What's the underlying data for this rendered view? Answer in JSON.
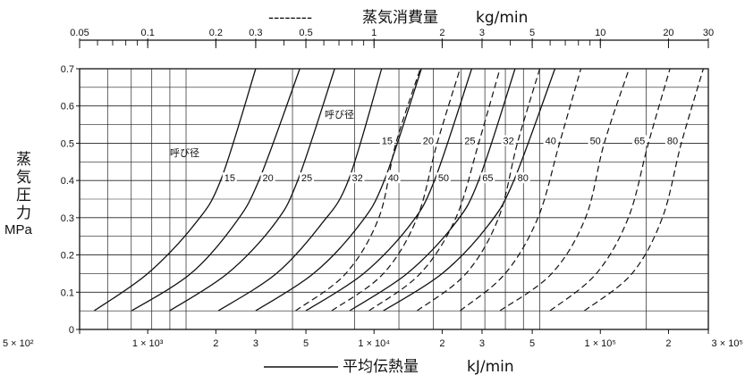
{
  "chart_data": {
    "type": "line",
    "title_top": "蒸気消費量",
    "title_top_unit": "kg/min",
    "title_top_legend": "--------",
    "title_bottom": "平均伝熱量",
    "title_bottom_unit": "kJ/min",
    "title_bottom_legend": "————",
    "ylabel_lines": [
      "蒸",
      "気",
      "圧",
      "力"
    ],
    "ylabel_unit": "MPa",
    "y_range": [
      0,
      0.7
    ],
    "y_ticks": [
      "0",
      "0.1",
      "0.2",
      "0.3",
      "0.4",
      "0.5",
      "0.6",
      "0.7"
    ],
    "x_bottom_range": [
      500,
      30000
    ],
    "x_bottom_scale": "log",
    "x_bottom_tick_labels": [
      "5 × 10²",
      "1 × 10³",
      "2",
      "3",
      "5",
      "1 × 10⁴",
      "2",
      "3",
      "5",
      "1 × 10⁵",
      "2",
      "3 × 10⁵"
    ],
    "x_top_range": [
      0.05,
      30
    ],
    "x_top_scale": "log",
    "x_top_tick_labels": [
      "0.05",
      "0.1",
      "0.2",
      "0.3",
      "0.5",
      "1",
      "2",
      "3",
      "5",
      "10",
      "20",
      "30"
    ],
    "nominal_size_label": "呼び径",
    "solid_series": [
      {
        "name": "15",
        "points": [
          [
            580,
            0.05
          ],
          [
            1000,
            0.15
          ],
          [
            1600,
            0.28
          ],
          [
            2100,
            0.4
          ],
          [
            3000,
            0.7
          ]
        ]
      },
      {
        "name": "20",
        "points": [
          [
            850,
            0.05
          ],
          [
            1550,
            0.15
          ],
          [
            2400,
            0.28
          ],
          [
            3100,
            0.4
          ],
          [
            4700,
            0.7
          ]
        ]
      },
      {
        "name": "25",
        "points": [
          [
            1250,
            0.05
          ],
          [
            2250,
            0.15
          ],
          [
            3600,
            0.28
          ],
          [
            4600,
            0.4
          ],
          [
            6700,
            0.7
          ]
        ]
      },
      {
        "name": "32",
        "points": [
          [
            2050,
            0.05
          ],
          [
            3700,
            0.15
          ],
          [
            5800,
            0.28
          ],
          [
            7700,
            0.4
          ],
          [
            10800,
            0.7
          ]
        ]
      },
      {
        "name": "40",
        "points": [
          [
            3000,
            0.05
          ],
          [
            5400,
            0.15
          ],
          [
            8600,
            0.28
          ],
          [
            11100,
            0.4
          ],
          [
            16200,
            0.7
          ]
        ]
      },
      {
        "name": "50",
        "points": [
          [
            5000,
            0.05
          ],
          [
            9000,
            0.15
          ],
          [
            14400,
            0.28
          ],
          [
            18500,
            0.4
          ],
          [
            27000,
            0.7
          ]
        ]
      },
      {
        "name": "65",
        "points": [
          [
            7800,
            0.05
          ],
          [
            14000,
            0.15
          ],
          [
            22500,
            0.28
          ],
          [
            29000,
            0.4
          ],
          [
            42000,
            0.7
          ]
        ]
      },
      {
        "name": "80",
        "points": [
          [
            11000,
            0.05
          ],
          [
            20000,
            0.15
          ],
          [
            32000,
            0.28
          ],
          [
            41500,
            0.4
          ],
          [
            63000,
            0.7
          ]
        ]
      }
    ],
    "dashed_series": [
      {
        "name": "15",
        "points": [
          [
            0.45,
            0.05
          ],
          [
            0.75,
            0.15
          ],
          [
            1.05,
            0.3
          ],
          [
            1.25,
            0.5
          ],
          [
            1.6,
            0.7
          ]
        ]
      },
      {
        "name": "20",
        "points": [
          [
            0.65,
            0.05
          ],
          [
            1.1,
            0.15
          ],
          [
            1.55,
            0.3
          ],
          [
            1.9,
            0.5
          ],
          [
            2.4,
            0.7
          ]
        ]
      },
      {
        "name": "25",
        "points": [
          [
            0.95,
            0.05
          ],
          [
            1.6,
            0.15
          ],
          [
            2.3,
            0.3
          ],
          [
            2.9,
            0.5
          ],
          [
            3.6,
            0.7
          ]
        ]
      },
      {
        "name": "32",
        "points": [
          [
            1.55,
            0.05
          ],
          [
            2.55,
            0.15
          ],
          [
            3.55,
            0.3
          ],
          [
            4.3,
            0.5
          ],
          [
            5.4,
            0.7
          ]
        ]
      },
      {
        "name": "40",
        "points": [
          [
            2.4,
            0.05
          ],
          [
            3.8,
            0.15
          ],
          [
            5.3,
            0.3
          ],
          [
            6.6,
            0.5
          ],
          [
            8.2,
            0.7
          ]
        ]
      },
      {
        "name": "50",
        "points": [
          [
            3.6,
            0.05
          ],
          [
            6.1,
            0.15
          ],
          [
            8.6,
            0.3
          ],
          [
            10.4,
            0.5
          ],
          [
            13.4,
            0.7
          ]
        ]
      },
      {
        "name": "65",
        "points": [
          [
            6.0,
            0.05
          ],
          [
            9.6,
            0.15
          ],
          [
            13.3,
            0.3
          ],
          [
            16.3,
            0.5
          ],
          [
            20.3,
            0.7
          ]
        ]
      },
      {
        "name": "80",
        "points": [
          [
            8.5,
            0.05
          ],
          [
            13.8,
            0.15
          ],
          [
            18.8,
            0.3
          ],
          [
            22.8,
            0.5
          ],
          [
            28.5,
            0.7
          ]
        ]
      }
    ]
  }
}
